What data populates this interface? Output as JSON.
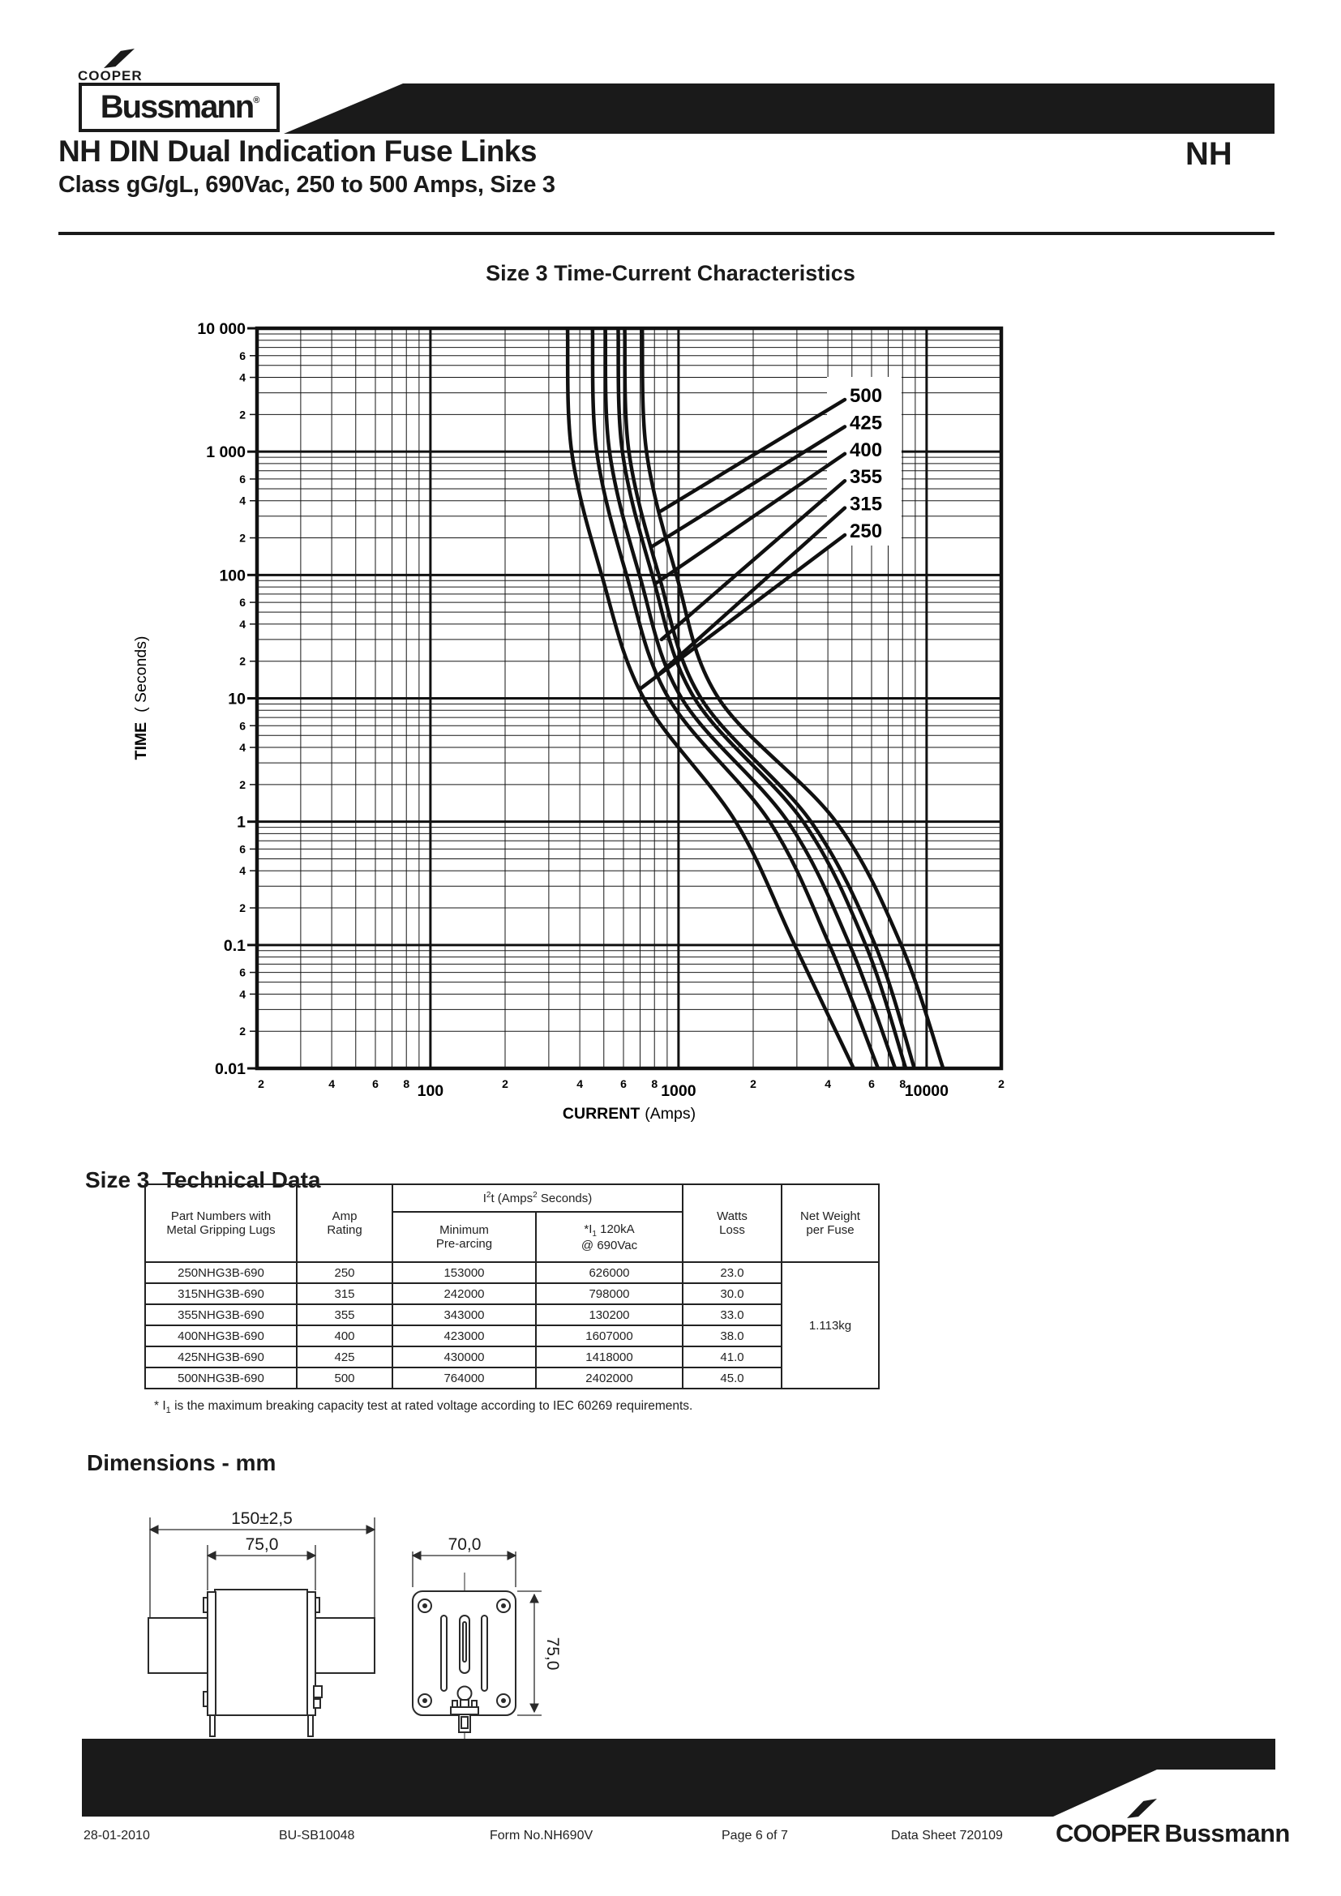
{
  "header": {
    "brand_small": "COOPER",
    "brand": "Bussmann",
    "brand_reg": "®",
    "title": "NH DIN Dual Indication Fuse Links",
    "subtitle": "Class gG/gL, 690Vac, 250 to 500 Amps, Size 3",
    "corner_tag": "NH"
  },
  "chart_data": {
    "type": "line",
    "title": "Size 3 Time-Current Characteristics",
    "xlabel": "CURRENT",
    "xlabel_unit": "(Amps)",
    "ylabel": "TIME",
    "ylabel_unit": "( Seconds)",
    "xscale": "log",
    "yscale": "log",
    "grid": "on",
    "xlim": [
      20,
      20000
    ],
    "ylim": [
      0.01,
      10000
    ],
    "x_ticks": [
      {
        "v": 20,
        "l": "2"
      },
      {
        "v": 40,
        "l": "4"
      },
      {
        "v": 60,
        "l": "6"
      },
      {
        "v": 80,
        "l": "8"
      },
      {
        "v": 100,
        "l": "100",
        "major": true
      },
      {
        "v": 200,
        "l": "2"
      },
      {
        "v": 400,
        "l": "4"
      },
      {
        "v": 600,
        "l": "6"
      },
      {
        "v": 800,
        "l": "8"
      },
      {
        "v": 1000,
        "l": "1000",
        "major": true
      },
      {
        "v": 2000,
        "l": "2"
      },
      {
        "v": 4000,
        "l": "4"
      },
      {
        "v": 6000,
        "l": "6"
      },
      {
        "v": 8000,
        "l": "8"
      },
      {
        "v": 10000,
        "l": "10000",
        "major": true
      },
      {
        "v": 20000,
        "l": "2"
      }
    ],
    "y_ticks": [
      {
        "v": 10000,
        "l": "10 000",
        "major": true
      },
      {
        "v": 6000,
        "l": "6"
      },
      {
        "v": 4000,
        "l": "4"
      },
      {
        "v": 2000,
        "l": "2"
      },
      {
        "v": 1000,
        "l": "1 000",
        "major": true
      },
      {
        "v": 600,
        "l": "6"
      },
      {
        "v": 400,
        "l": "4"
      },
      {
        "v": 200,
        "l": "2"
      },
      {
        "v": 100,
        "l": "100",
        "major": true
      },
      {
        "v": 60,
        "l": "6"
      },
      {
        "v": 40,
        "l": "4"
      },
      {
        "v": 20,
        "l": "2"
      },
      {
        "v": 10,
        "l": "10",
        "major": true
      },
      {
        "v": 6,
        "l": "6"
      },
      {
        "v": 4,
        "l": "4"
      },
      {
        "v": 2,
        "l": "2"
      },
      {
        "v": 1,
        "l": "1",
        "major": true
      },
      {
        "v": 0.6,
        "l": "6"
      },
      {
        "v": 0.4,
        "l": "4"
      },
      {
        "v": 0.2,
        "l": "2"
      },
      {
        "v": 0.1,
        "l": "0.1",
        "major": true
      },
      {
        "v": 0.06,
        "l": "6"
      },
      {
        "v": 0.04,
        "l": "4"
      },
      {
        "v": 0.02,
        "l": "2"
      },
      {
        "v": 0.01,
        "l": "0.01",
        "major": true
      }
    ],
    "series": [
      {
        "name": "250",
        "points": [
          [
            357,
            10000
          ],
          [
            371,
            1000
          ],
          [
            490,
            100
          ],
          [
            725,
            10
          ],
          [
            1700,
            1
          ],
          [
            2940,
            0.1
          ],
          [
            5080,
            0.01
          ]
        ],
        "label_t": 12
      },
      {
        "name": "315",
        "points": [
          [
            450,
            10000
          ],
          [
            468,
            1000
          ],
          [
            617,
            100
          ],
          [
            913,
            10
          ],
          [
            2330,
            1
          ],
          [
            4060,
            0.1
          ],
          [
            6370,
            0.01
          ]
        ],
        "label_t": 16
      },
      {
        "name": "355",
        "points": [
          [
            507,
            10000
          ],
          [
            527,
            1000
          ],
          [
            696,
            100
          ],
          [
            1030,
            10
          ],
          [
            2760,
            1
          ],
          [
            4900,
            0.1
          ],
          [
            7470,
            0.01
          ]
        ],
        "label_t": 30
      },
      {
        "name": "400",
        "points": [
          [
            571,
            10000
          ],
          [
            594,
            1000
          ],
          [
            784,
            100
          ],
          [
            1160,
            10
          ],
          [
            3180,
            1
          ],
          [
            5680,
            0.1
          ],
          [
            8240,
            0.01
          ]
        ],
        "label_t": 85
      },
      {
        "name": "425",
        "points": [
          [
            607,
            10000
          ],
          [
            631,
            1000
          ],
          [
            833,
            100
          ],
          [
            1233,
            10
          ],
          [
            3420,
            1
          ],
          [
            6200,
            0.1
          ],
          [
            8930,
            0.01
          ]
        ],
        "label_t": 170
      },
      {
        "name": "500",
        "points": [
          [
            714,
            10000
          ],
          [
            743,
            1000
          ],
          [
            980,
            100
          ],
          [
            1450,
            10
          ],
          [
            4310,
            1
          ],
          [
            7900,
            0.1
          ],
          [
            11660,
            0.01
          ]
        ],
        "label_t": 330
      }
    ],
    "label_order": [
      "500",
      "425",
      "400",
      "355",
      "315",
      "250"
    ],
    "legend_position": "inside-right"
  },
  "tech": {
    "heading": "Size 3  Technical Data",
    "headers": {
      "part": [
        "Part Numbers with",
        "Metal Gripping Lugs"
      ],
      "amp": [
        "Amp",
        "Rating"
      ],
      "i2t": [
        "I",
        "2",
        "t (Amps",
        "2",
        " Seconds)"
      ],
      "min": [
        "Minimum",
        "Pre-arcing"
      ],
      "i1": [
        "*I",
        "1",
        " 120kA"
      ],
      "i1b": "@ 690Vac",
      "watts": [
        "Watts",
        "Loss"
      ],
      "net": [
        "Net Weight",
        "per Fuse"
      ]
    },
    "rows": [
      [
        "250NHG3B-690",
        "250",
        "153000",
        "626000",
        "23.0"
      ],
      [
        "315NHG3B-690",
        "315",
        "242000",
        "798000",
        "30.0"
      ],
      [
        "355NHG3B-690",
        "355",
        "343000",
        "130200",
        "33.0"
      ],
      [
        "400NHG3B-690",
        "400",
        "423000",
        "1607000",
        "38.0"
      ],
      [
        "425NHG3B-690",
        "425",
        "430000",
        "1418000",
        "41.0"
      ],
      [
        "500NHG3B-690",
        "500",
        "764000",
        "2402000",
        "45.0"
      ]
    ],
    "net_weight": "1.113kg",
    "footnote": [
      "* I",
      "1",
      " is the maximum breaking capacity test at rated voltage according to IEC 60269 requirements."
    ]
  },
  "dimensions": {
    "heading": "Dimensions - mm",
    "overall_width": "150±2,5",
    "body_width": "75,0",
    "plate_width": "70,0",
    "plate_height": "75,0"
  },
  "footer": {
    "date": "28-01-2010",
    "doc": "BU-SB10048",
    "form": "Form No.NH690V",
    "page": "Page 6 of 7",
    "datasheet": "Data Sheet 720109",
    "brand_bold": "COOPER",
    "brand": "Bussmann"
  }
}
